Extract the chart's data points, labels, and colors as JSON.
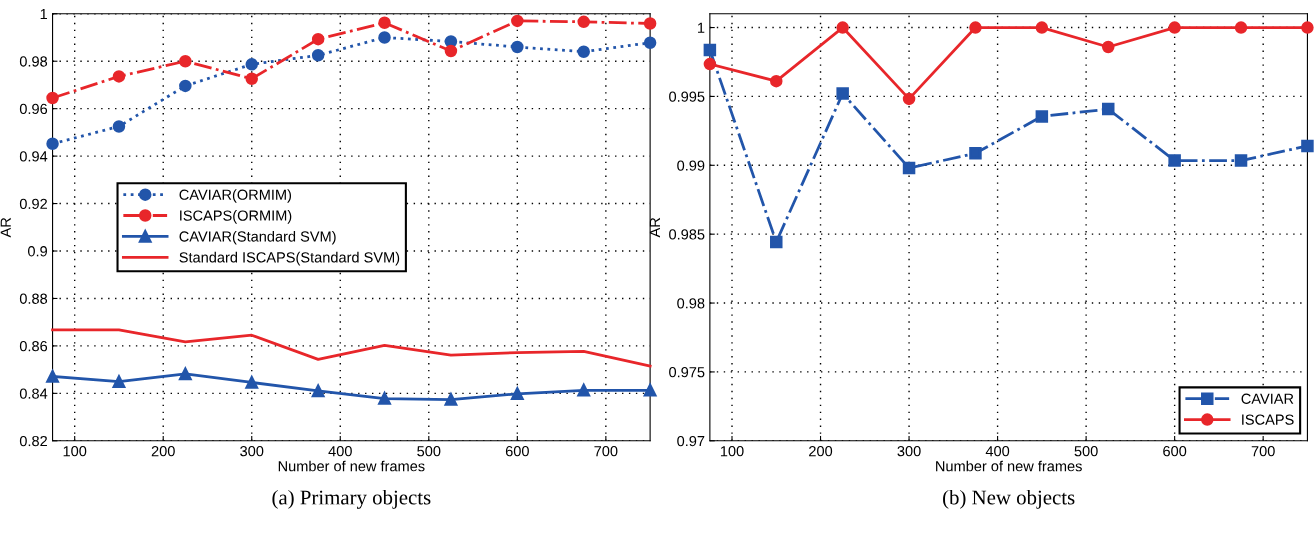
{
  "chart_data": [
    {
      "type": "line",
      "title": "(a) Primary objects",
      "xlabel": "Number of new frames",
      "ylabel": "AR",
      "x": [
        75,
        150,
        225,
        300,
        375,
        450,
        525,
        600,
        675,
        750
      ],
      "xlim": [
        75,
        750
      ],
      "xticks": [
        100,
        200,
        300,
        400,
        500,
        600,
        700
      ],
      "ylim": [
        0.82,
        1
      ],
      "yticks": [
        0.82,
        0.84,
        0.86,
        0.88,
        0.9,
        0.92,
        0.94,
        0.96,
        0.98,
        1
      ],
      "grid": true,
      "legend": "center",
      "series": [
        {
          "name": "CAVIAR(ORMIM)",
          "color": "#2255aa",
          "marker": "circle",
          "line_style": "dotted",
          "values": [
            0.9452,
            0.9525,
            0.9696,
            0.9787,
            0.9825,
            0.99,
            0.9883,
            0.986,
            0.984,
            0.9878
          ]
        },
        {
          "name": "ISCAPS(ORMIM)",
          "color": "#e8262a",
          "marker": "circle",
          "line_style": "dashdot",
          "values": [
            0.9645,
            0.9736,
            0.98,
            0.9726,
            0.9893,
            0.9962,
            0.9843,
            0.997,
            0.9966,
            0.9959
          ]
        },
        {
          "name": "CAVIAR(Standard SVM)",
          "color": "#2255aa",
          "marker": "triangle",
          "line_style": "solid",
          "values": [
            0.8471,
            0.8449,
            0.8482,
            0.8446,
            0.841,
            0.8378,
            0.8374,
            0.8398,
            0.8413,
            0.8413
          ]
        },
        {
          "name": "Standard ISCAPS(Standard SVM)",
          "color": "#e8262a",
          "marker": "none",
          "line_style": "solid",
          "values": [
            0.8668,
            0.8668,
            0.8617,
            0.8645,
            0.8543,
            0.8602,
            0.8561,
            0.8572,
            0.8577,
            0.8515
          ]
        }
      ]
    },
    {
      "type": "line",
      "title": "(b) New objects",
      "xlabel": "Number of new frames",
      "ylabel": "AR",
      "x": [
        75,
        150,
        225,
        300,
        375,
        450,
        525,
        600,
        675,
        750
      ],
      "xlim": [
        75,
        750
      ],
      "xticks": [
        100,
        200,
        300,
        400,
        500,
        600,
        700
      ],
      "ylim": [
        0.97,
        1.001
      ],
      "yticks": [
        0.97,
        0.975,
        0.98,
        0.985,
        0.99,
        0.995,
        1
      ],
      "grid": true,
      "legend": "lower right",
      "series": [
        {
          "name": "CAVIAR",
          "color": "#2255aa",
          "marker": "square",
          "line_style": "dashdot",
          "values": [
            0.99837,
            0.98443,
            0.99521,
            0.9898,
            0.99087,
            0.99355,
            0.99408,
            0.99034,
            0.99034,
            0.99141
          ]
        },
        {
          "name": "ISCAPS",
          "color": "#e8262a",
          "marker": "circle",
          "line_style": "solid",
          "values": [
            0.99735,
            0.99611,
            1,
            0.99482,
            1,
            1,
            0.99859,
            1,
            1,
            1
          ]
        }
      ]
    }
  ]
}
